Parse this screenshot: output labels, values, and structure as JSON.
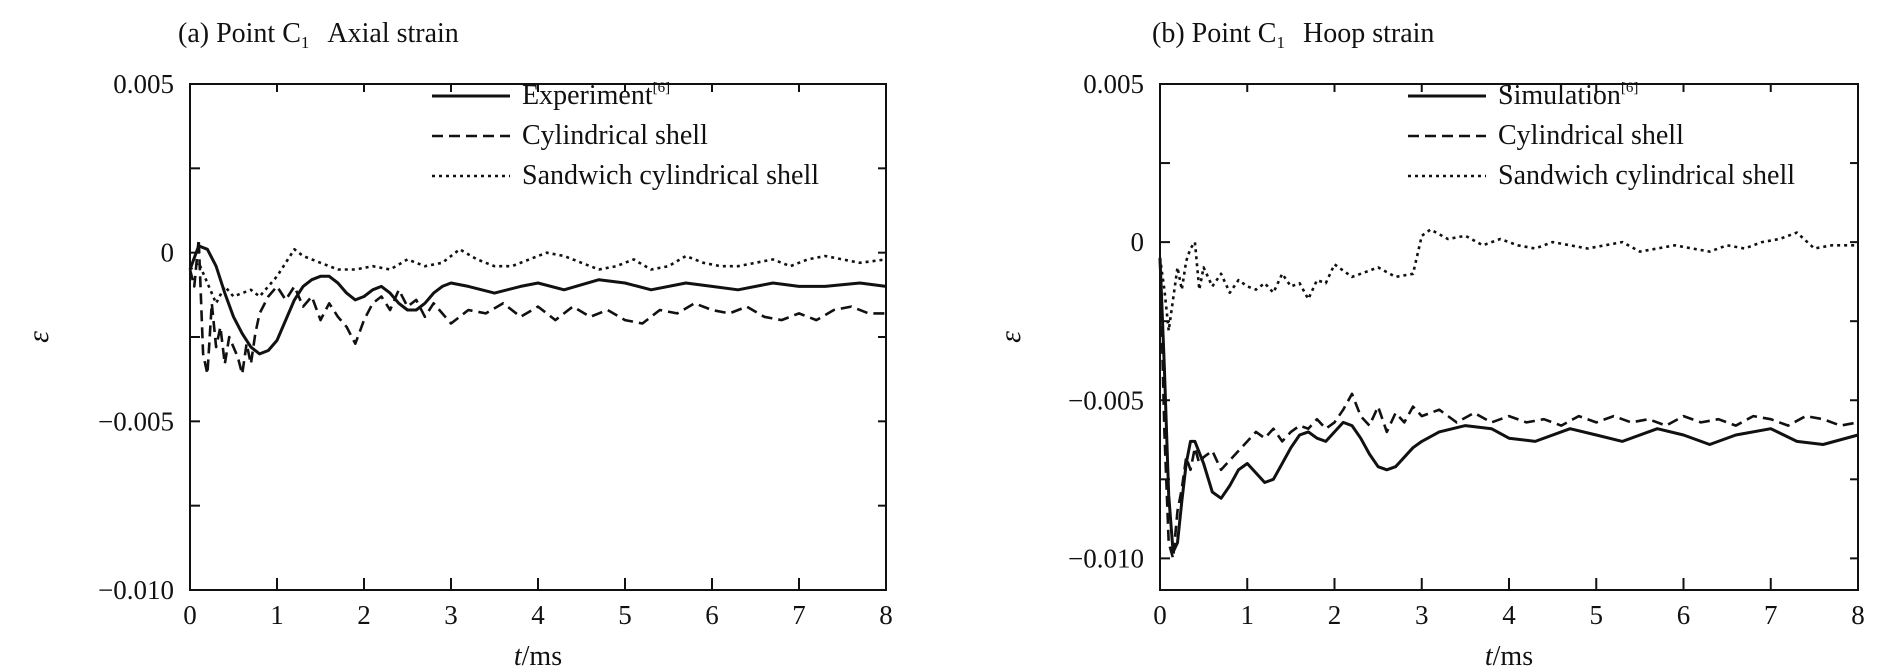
{
  "chart_data": [
    {
      "type": "line",
      "title": "(a) Point C",
      "title_subscript": "1",
      "subtitle": "Axial strain",
      "xlabel": "t/ms",
      "ylabel": "ε",
      "xlim": [
        0,
        8
      ],
      "ylim": [
        -0.01,
        0.005
      ],
      "xticks": [
        "0",
        "1",
        "2",
        "3",
        "4",
        "5",
        "6",
        "7",
        "8"
      ],
      "yticks": [
        {
          "value": 0.005,
          "label": "0.005"
        },
        {
          "value": 0,
          "label": "0"
        },
        {
          "value": -0.005,
          "label": "−0.005"
        },
        {
          "value": -0.01,
          "label": "−0.010"
        }
      ],
      "legend_position": "top-right",
      "series": [
        {
          "name": "Experiment",
          "name_superscript": "[6]",
          "style": "solid",
          "color": "#111111",
          "x": [
            0,
            0.1,
            0.2,
            0.3,
            0.4,
            0.5,
            0.6,
            0.7,
            0.8,
            0.9,
            1.0,
            1.1,
            1.2,
            1.3,
            1.4,
            1.5,
            1.6,
            1.7,
            1.8,
            1.9,
            2.0,
            2.1,
            2.2,
            2.3,
            2.4,
            2.5,
            2.6,
            2.7,
            2.8,
            2.9,
            3.0,
            3.2,
            3.5,
            3.8,
            4.0,
            4.3,
            4.7,
            5.0,
            5.3,
            5.7,
            6.0,
            6.3,
            6.7,
            7.0,
            7.3,
            7.7,
            8.0
          ],
          "y": [
            -0.0005,
            0.0002,
            0.0001,
            -0.0004,
            -0.0012,
            -0.0019,
            -0.0024,
            -0.0028,
            -0.003,
            -0.0029,
            -0.0026,
            -0.002,
            -0.0014,
            -0.001,
            -0.0008,
            -0.0007,
            -0.0007,
            -0.0009,
            -0.0012,
            -0.0014,
            -0.0013,
            -0.0011,
            -0.001,
            -0.0012,
            -0.0015,
            -0.0017,
            -0.0017,
            -0.0015,
            -0.0012,
            -0.001,
            -0.0009,
            -0.001,
            -0.0012,
            -0.001,
            -0.0009,
            -0.0011,
            -0.0008,
            -0.0009,
            -0.0011,
            -0.0009,
            -0.001,
            -0.0011,
            -0.0009,
            -0.001,
            -0.001,
            -0.0009,
            -0.001
          ]
        },
        {
          "name": "Cylindrical shell",
          "style": "dashed",
          "color": "#111111",
          "x": [
            0,
            0.05,
            0.1,
            0.15,
            0.2,
            0.25,
            0.3,
            0.35,
            0.4,
            0.45,
            0.5,
            0.55,
            0.6,
            0.65,
            0.7,
            0.75,
            0.8,
            0.9,
            1.0,
            1.1,
            1.2,
            1.3,
            1.4,
            1.5,
            1.6,
            1.7,
            1.8,
            1.9,
            2.0,
            2.1,
            2.2,
            2.3,
            2.4,
            2.5,
            2.6,
            2.7,
            2.8,
            2.9,
            3.0,
            3.2,
            3.4,
            3.6,
            3.8,
            4.0,
            4.2,
            4.4,
            4.6,
            4.8,
            5.0,
            5.2,
            5.4,
            5.6,
            5.8,
            6.0,
            6.2,
            6.4,
            6.6,
            6.8,
            7.0,
            7.2,
            7.4,
            7.6,
            7.8,
            8.0
          ],
          "y": [
            -0.0005,
            -0.001,
            0.0004,
            -0.003,
            -0.0036,
            -0.0015,
            -0.0028,
            -0.0022,
            -0.0033,
            -0.0025,
            -0.0028,
            -0.0031,
            -0.0036,
            -0.0027,
            -0.0033,
            -0.0024,
            -0.0018,
            -0.0013,
            -0.001,
            -0.0014,
            -0.001,
            -0.0016,
            -0.0013,
            -0.002,
            -0.0015,
            -0.0019,
            -0.0022,
            -0.0027,
            -0.002,
            -0.0015,
            -0.0013,
            -0.0017,
            -0.0011,
            -0.0016,
            -0.0014,
            -0.0019,
            -0.0015,
            -0.0018,
            -0.0021,
            -0.0017,
            -0.0018,
            -0.0015,
            -0.0019,
            -0.0016,
            -0.002,
            -0.0016,
            -0.0019,
            -0.0017,
            -0.002,
            -0.0021,
            -0.0017,
            -0.0018,
            -0.0015,
            -0.0017,
            -0.0018,
            -0.0016,
            -0.0019,
            -0.002,
            -0.0018,
            -0.002,
            -0.0017,
            -0.0016,
            -0.0018,
            -0.0018
          ]
        },
        {
          "name": "Sandwich cylindrical shell",
          "style": "dotted",
          "color": "#111111",
          "x": [
            0,
            0.1,
            0.2,
            0.3,
            0.4,
            0.5,
            0.6,
            0.7,
            0.8,
            0.9,
            1.0,
            1.1,
            1.2,
            1.3,
            1.5,
            1.7,
            1.9,
            2.1,
            2.3,
            2.5,
            2.7,
            2.9,
            3.1,
            3.3,
            3.5,
            3.7,
            3.9,
            4.1,
            4.3,
            4.5,
            4.7,
            4.9,
            5.1,
            5.3,
            5.5,
            5.7,
            5.9,
            6.1,
            6.3,
            6.5,
            6.7,
            6.9,
            7.1,
            7.3,
            7.5,
            7.7,
            8.0
          ],
          "y": [
            -0.0005,
            -0.0003,
            -0.0009,
            -0.0015,
            -0.001,
            -0.0013,
            -0.0012,
            -0.0011,
            -0.0013,
            -0.001,
            -0.0007,
            -0.0003,
            0.0001,
            -0.0001,
            -0.0003,
            -0.0005,
            -0.0005,
            -0.0004,
            -0.0005,
            -0.0002,
            -0.0004,
            -0.0003,
            0.0001,
            -0.0002,
            -0.0004,
            -0.0004,
            -0.0002,
            0.0,
            -0.0001,
            -0.0003,
            -0.0005,
            -0.0004,
            -0.0002,
            -0.0005,
            -0.0004,
            -0.0001,
            -0.0003,
            -0.0004,
            -0.0004,
            -0.0003,
            -0.0002,
            -0.0004,
            -0.0002,
            -0.0001,
            -0.0002,
            -0.0003,
            -0.0002
          ]
        }
      ]
    },
    {
      "type": "line",
      "title": "(b) Point C",
      "title_subscript": "1",
      "subtitle": "Hoop strain",
      "xlabel": "t/ms",
      "ylabel": "ε",
      "xlim": [
        0,
        8
      ],
      "ylim": [
        -0.011,
        0.005
      ],
      "xticks": [
        "0",
        "1",
        "2",
        "3",
        "4",
        "5",
        "6",
        "7",
        "8"
      ],
      "yticks": [
        {
          "value": 0.005,
          "label": "0.005"
        },
        {
          "value": 0,
          "label": "0"
        },
        {
          "value": -0.005,
          "label": "−0.005"
        },
        {
          "value": -0.01,
          "label": "−0.010"
        }
      ],
      "legend_position": "top-right",
      "series": [
        {
          "name": "Simulation",
          "name_superscript": "[6]",
          "style": "solid",
          "color": "#111111",
          "x": [
            0,
            0.05,
            0.1,
            0.15,
            0.2,
            0.25,
            0.3,
            0.35,
            0.4,
            0.5,
            0.6,
            0.7,
            0.8,
            0.9,
            1.0,
            1.1,
            1.2,
            1.3,
            1.4,
            1.5,
            1.6,
            1.7,
            1.8,
            1.9,
            2.0,
            2.1,
            2.2,
            2.3,
            2.4,
            2.5,
            2.6,
            2.7,
            2.8,
            2.9,
            3.0,
            3.2,
            3.5,
            3.8,
            4.0,
            4.3,
            4.7,
            5.0,
            5.3,
            5.7,
            6.0,
            6.3,
            6.6,
            7.0,
            7.3,
            7.6,
            8.0
          ],
          "y": [
            -0.0005,
            -0.004,
            -0.008,
            -0.0098,
            -0.0095,
            -0.0082,
            -0.007,
            -0.0063,
            -0.0063,
            -0.007,
            -0.0079,
            -0.0081,
            -0.0077,
            -0.0072,
            -0.007,
            -0.0073,
            -0.0076,
            -0.0075,
            -0.007,
            -0.0065,
            -0.0061,
            -0.006,
            -0.0062,
            -0.0063,
            -0.006,
            -0.0057,
            -0.0058,
            -0.0062,
            -0.0067,
            -0.0071,
            -0.0072,
            -0.0071,
            -0.0068,
            -0.0065,
            -0.0063,
            -0.006,
            -0.0058,
            -0.0059,
            -0.0062,
            -0.0063,
            -0.0059,
            -0.0061,
            -0.0063,
            -0.0059,
            -0.0061,
            -0.0064,
            -0.0061,
            -0.0059,
            -0.0063,
            -0.0064,
            -0.0061
          ]
        },
        {
          "name": "Cylindrical shell",
          "style": "dashed",
          "color": "#111111",
          "x": [
            0,
            0.05,
            0.1,
            0.15,
            0.2,
            0.25,
            0.3,
            0.35,
            0.4,
            0.45,
            0.5,
            0.6,
            0.7,
            0.8,
            0.9,
            1.0,
            1.1,
            1.2,
            1.3,
            1.4,
            1.5,
            1.6,
            1.7,
            1.8,
            1.9,
            2.0,
            2.1,
            2.2,
            2.3,
            2.4,
            2.5,
            2.6,
            2.7,
            2.8,
            2.9,
            3.0,
            3.2,
            3.4,
            3.6,
            3.8,
            4.0,
            4.2,
            4.4,
            4.6,
            4.8,
            5.0,
            5.2,
            5.4,
            5.6,
            5.8,
            6.0,
            6.2,
            6.4,
            6.6,
            6.8,
            7.0,
            7.2,
            7.4,
            7.6,
            7.8,
            8.0
          ],
          "y": [
            -0.0005,
            -0.006,
            -0.0095,
            -0.01,
            -0.0085,
            -0.0078,
            -0.0068,
            -0.0072,
            -0.0065,
            -0.007,
            -0.0068,
            -0.0066,
            -0.0072,
            -0.0069,
            -0.0066,
            -0.0063,
            -0.006,
            -0.0062,
            -0.0059,
            -0.0063,
            -0.006,
            -0.0058,
            -0.0059,
            -0.0056,
            -0.0059,
            -0.0057,
            -0.0053,
            -0.0048,
            -0.0055,
            -0.0058,
            -0.0052,
            -0.006,
            -0.0054,
            -0.0057,
            -0.0052,
            -0.0055,
            -0.0053,
            -0.0057,
            -0.0054,
            -0.0057,
            -0.0055,
            -0.0057,
            -0.0056,
            -0.0058,
            -0.0055,
            -0.0057,
            -0.0055,
            -0.0057,
            -0.0056,
            -0.0058,
            -0.0055,
            -0.0057,
            -0.0056,
            -0.0058,
            -0.0055,
            -0.0056,
            -0.0058,
            -0.0055,
            -0.0056,
            -0.0058,
            -0.0057
          ]
        },
        {
          "name": "Sandwich cylindrical shell",
          "style": "dotted",
          "color": "#111111",
          "x": [
            0,
            0.05,
            0.1,
            0.15,
            0.2,
            0.25,
            0.3,
            0.35,
            0.4,
            0.45,
            0.5,
            0.6,
            0.7,
            0.8,
            0.9,
            1.0,
            1.1,
            1.2,
            1.3,
            1.4,
            1.5,
            1.6,
            1.7,
            1.8,
            1.9,
            2.0,
            2.1,
            2.2,
            2.3,
            2.5,
            2.7,
            2.9,
            3.0,
            3.1,
            3.3,
            3.5,
            3.7,
            3.9,
            4.1,
            4.3,
            4.5,
            4.7,
            4.9,
            5.1,
            5.3,
            5.5,
            5.7,
            5.9,
            6.1,
            6.3,
            6.5,
            6.7,
            6.9,
            7.1,
            7.3,
            7.5,
            7.7,
            8.0
          ],
          "y": [
            -0.0005,
            -0.0015,
            -0.0028,
            -0.0018,
            -0.0008,
            -0.0015,
            -0.0006,
            -0.0002,
            0.0,
            -0.0015,
            -0.0008,
            -0.0014,
            -0.001,
            -0.0016,
            -0.0012,
            -0.0014,
            -0.0015,
            -0.0013,
            -0.0016,
            -0.001,
            -0.0014,
            -0.0013,
            -0.0018,
            -0.0012,
            -0.0013,
            -0.0007,
            -0.0009,
            -0.0011,
            -0.001,
            -0.0008,
            -0.0011,
            -0.001,
            0.0002,
            0.0004,
            0.0001,
            0.0002,
            -0.0001,
            0.0001,
            -0.0001,
            -0.0002,
            0.0,
            -0.0001,
            -0.0002,
            -0.0001,
            0.0,
            -0.0003,
            -0.0002,
            -0.0001,
            -0.0002,
            -0.0003,
            -0.0001,
            -0.0002,
            0.0,
            0.0001,
            0.0003,
            -0.0002,
            -0.0001,
            -0.0001
          ]
        }
      ]
    }
  ]
}
